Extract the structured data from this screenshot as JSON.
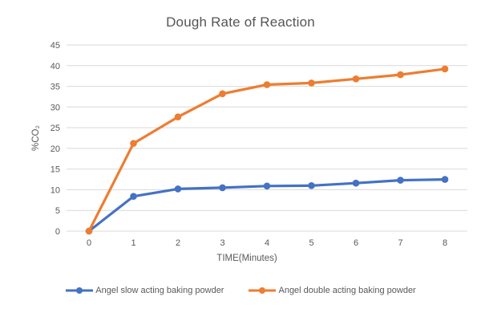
{
  "chart_data": {
    "type": "line",
    "title": "Dough Rate of Reaction",
    "xlabel": "TIME(Minutes)",
    "ylabel": "%CO₂",
    "x": [
      0,
      1,
      2,
      3,
      4,
      5,
      6,
      7,
      8
    ],
    "ylim": [
      0,
      45
    ],
    "ytick_step": 5,
    "grid": true,
    "legend_position": "bottom",
    "gridline_color": "#D9D9D9",
    "text_color": "#595959",
    "series": [
      {
        "name": "Angel slow acting baking powder",
        "color": "#4472C4",
        "values": [
          0,
          8.4,
          10.2,
          10.5,
          10.9,
          11,
          11.6,
          12.3,
          12.5
        ]
      },
      {
        "name": "Angel double acting baking powder",
        "color": "#ED7D31",
        "values": [
          0,
          21.2,
          27.6,
          33.2,
          35.4,
          35.8,
          36.8,
          37.8,
          39.2
        ]
      }
    ]
  }
}
